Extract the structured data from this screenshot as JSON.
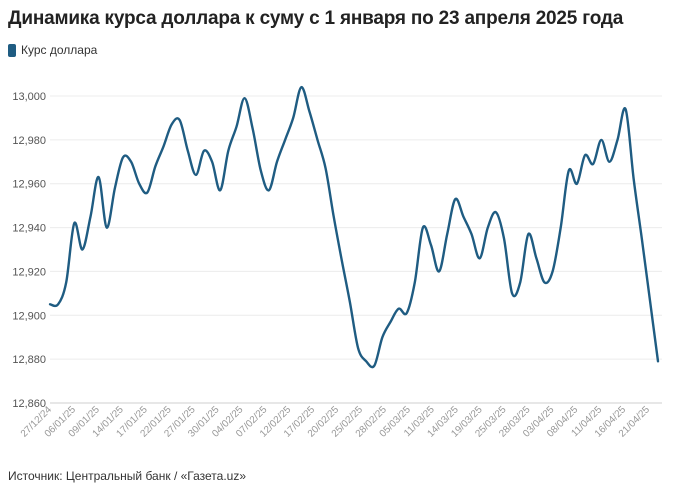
{
  "title": "Динамика курса доллара к суму с 1 января по 23 апреля 2025 года",
  "legend": {
    "label": "Курс доллара",
    "color": "#1f5c82"
  },
  "source": "Источник: Центральный банк / «Газета.uz»",
  "chart_data": {
    "type": "line",
    "title": "Динамика курса доллара к суму с 1 января по 23 апреля 2025 года",
    "xlabel": "",
    "ylabel": "",
    "ylim": [
      12860,
      13000
    ],
    "yticks": [
      12860,
      12880,
      12900,
      12920,
      12940,
      12960,
      12980,
      13000
    ],
    "ytick_labels": [
      "12,860",
      "12,880",
      "12,900",
      "12,920",
      "12,940",
      "12,960",
      "12,980",
      "13,000"
    ],
    "grid": true,
    "legend_position": "top-left",
    "x_tick_labels": [
      "27/12/24",
      "06/01/25",
      "09/01/25",
      "14/01/25",
      "17/01/25",
      "22/01/25",
      "27/01/25",
      "30/01/25",
      "04/02/25",
      "07/02/25",
      "12/02/25",
      "17/02/25",
      "20/02/25",
      "25/02/25",
      "28/02/25",
      "05/03/25",
      "11/03/25",
      "14/03/25",
      "19/03/25",
      "25/03/25",
      "28/03/25",
      "03/04/25",
      "08/04/25",
      "11/04/25",
      "16/04/25",
      "21/04/25"
    ],
    "series": [
      {
        "name": "Курс доллара",
        "color": "#1f5c82",
        "values": [
          12905,
          12905,
          12915,
          12942,
          12930,
          12945,
          12963,
          12940,
          12958,
          12972,
          12970,
          12960,
          12956,
          12968,
          12977,
          12987,
          12989,
          12975,
          12964,
          12975,
          12970,
          12957,
          12975,
          12986,
          12999,
          12985,
          12966,
          12957,
          12970,
          12980,
          12990,
          13004,
          12993,
          12980,
          12967,
          12945,
          12925,
          12906,
          12885,
          12879,
          12877,
          12890,
          12897,
          12903,
          12901,
          12915,
          12940,
          12932,
          12920,
          12937,
          12953,
          12945,
          12937,
          12926,
          12940,
          12947,
          12935,
          12910,
          12915,
          12937,
          12926,
          12915,
          12920,
          12940,
          12966,
          12960,
          12973,
          12969,
          12980,
          12970,
          12980,
          12994,
          12962,
          12935,
          12907,
          12879
        ]
      }
    ]
  }
}
